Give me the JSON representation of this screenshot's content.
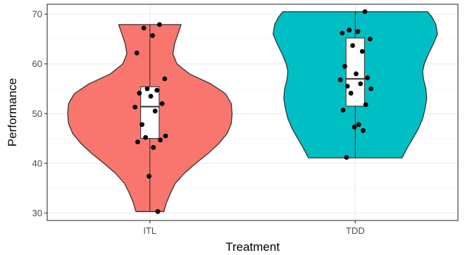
{
  "chart_data": {
    "type": "violin",
    "title": "",
    "xlabel": "Treatment",
    "ylabel": "Performance",
    "ylim": [
      28.5,
      72
    ],
    "yticks": [
      30,
      40,
      50,
      60,
      70
    ],
    "categories": [
      "ITL",
      "TDD"
    ],
    "grid": true,
    "legend": "none",
    "series": [
      {
        "name": "ITL",
        "color": "#F8766D",
        "box": {
          "min": 30.3,
          "q1": 45.0,
          "median": 51.4,
          "q3": 55.4,
          "max": 67.9
        },
        "points": [
          67.9,
          67.2,
          65.7,
          62.2,
          57.0,
          55.0,
          54.7,
          54.1,
          53.5,
          52.0,
          51.3,
          50.5,
          47.8,
          45.5,
          45.2,
          44.7,
          44.3,
          43.2,
          37.4,
          30.3
        ],
        "violin_profile": [
          [
            30.3,
            0.17
          ],
          [
            32.0,
            0.2
          ],
          [
            34.0,
            0.25
          ],
          [
            36.0,
            0.31
          ],
          [
            38.0,
            0.42
          ],
          [
            40.0,
            0.56
          ],
          [
            42.0,
            0.71
          ],
          [
            44.0,
            0.84
          ],
          [
            46.0,
            0.94
          ],
          [
            48.0,
            0.99
          ],
          [
            50.0,
            1.0
          ],
          [
            52.0,
            0.99
          ],
          [
            54.0,
            0.92
          ],
          [
            56.0,
            0.74
          ],
          [
            58.0,
            0.48
          ],
          [
            60.0,
            0.33
          ],
          [
            62.0,
            0.28
          ],
          [
            64.0,
            0.3
          ],
          [
            66.0,
            0.34
          ],
          [
            67.9,
            0.38
          ]
        ]
      },
      {
        "name": "TDD",
        "color": "#00BFC4",
        "box": {
          "min": 41.1,
          "q1": 51.5,
          "median": 57.0,
          "q3": 65.2,
          "max": 70.5
        },
        "points": [
          70.5,
          66.8,
          66.5,
          66.2,
          65.0,
          63.7,
          62.5,
          59.5,
          58.0,
          57.2,
          56.8,
          56.0,
          55.5,
          55.0,
          54.1,
          51.8,
          50.7,
          47.8,
          47.3,
          46.6,
          41.2
        ],
        "violin_profile": [
          [
            41.1,
            0.57
          ],
          [
            43.0,
            0.63
          ],
          [
            45.0,
            0.7
          ],
          [
            47.0,
            0.77
          ],
          [
            49.0,
            0.82
          ],
          [
            51.0,
            0.85
          ],
          [
            53.0,
            0.87
          ],
          [
            55.0,
            0.86
          ],
          [
            57.0,
            0.83
          ],
          [
            58.5,
            0.82
          ],
          [
            60.0,
            0.84
          ],
          [
            62.0,
            0.89
          ],
          [
            64.0,
            0.95
          ],
          [
            66.0,
            1.0
          ],
          [
            68.0,
            0.98
          ],
          [
            69.5,
            0.93
          ],
          [
            70.5,
            0.88
          ]
        ]
      }
    ]
  }
}
